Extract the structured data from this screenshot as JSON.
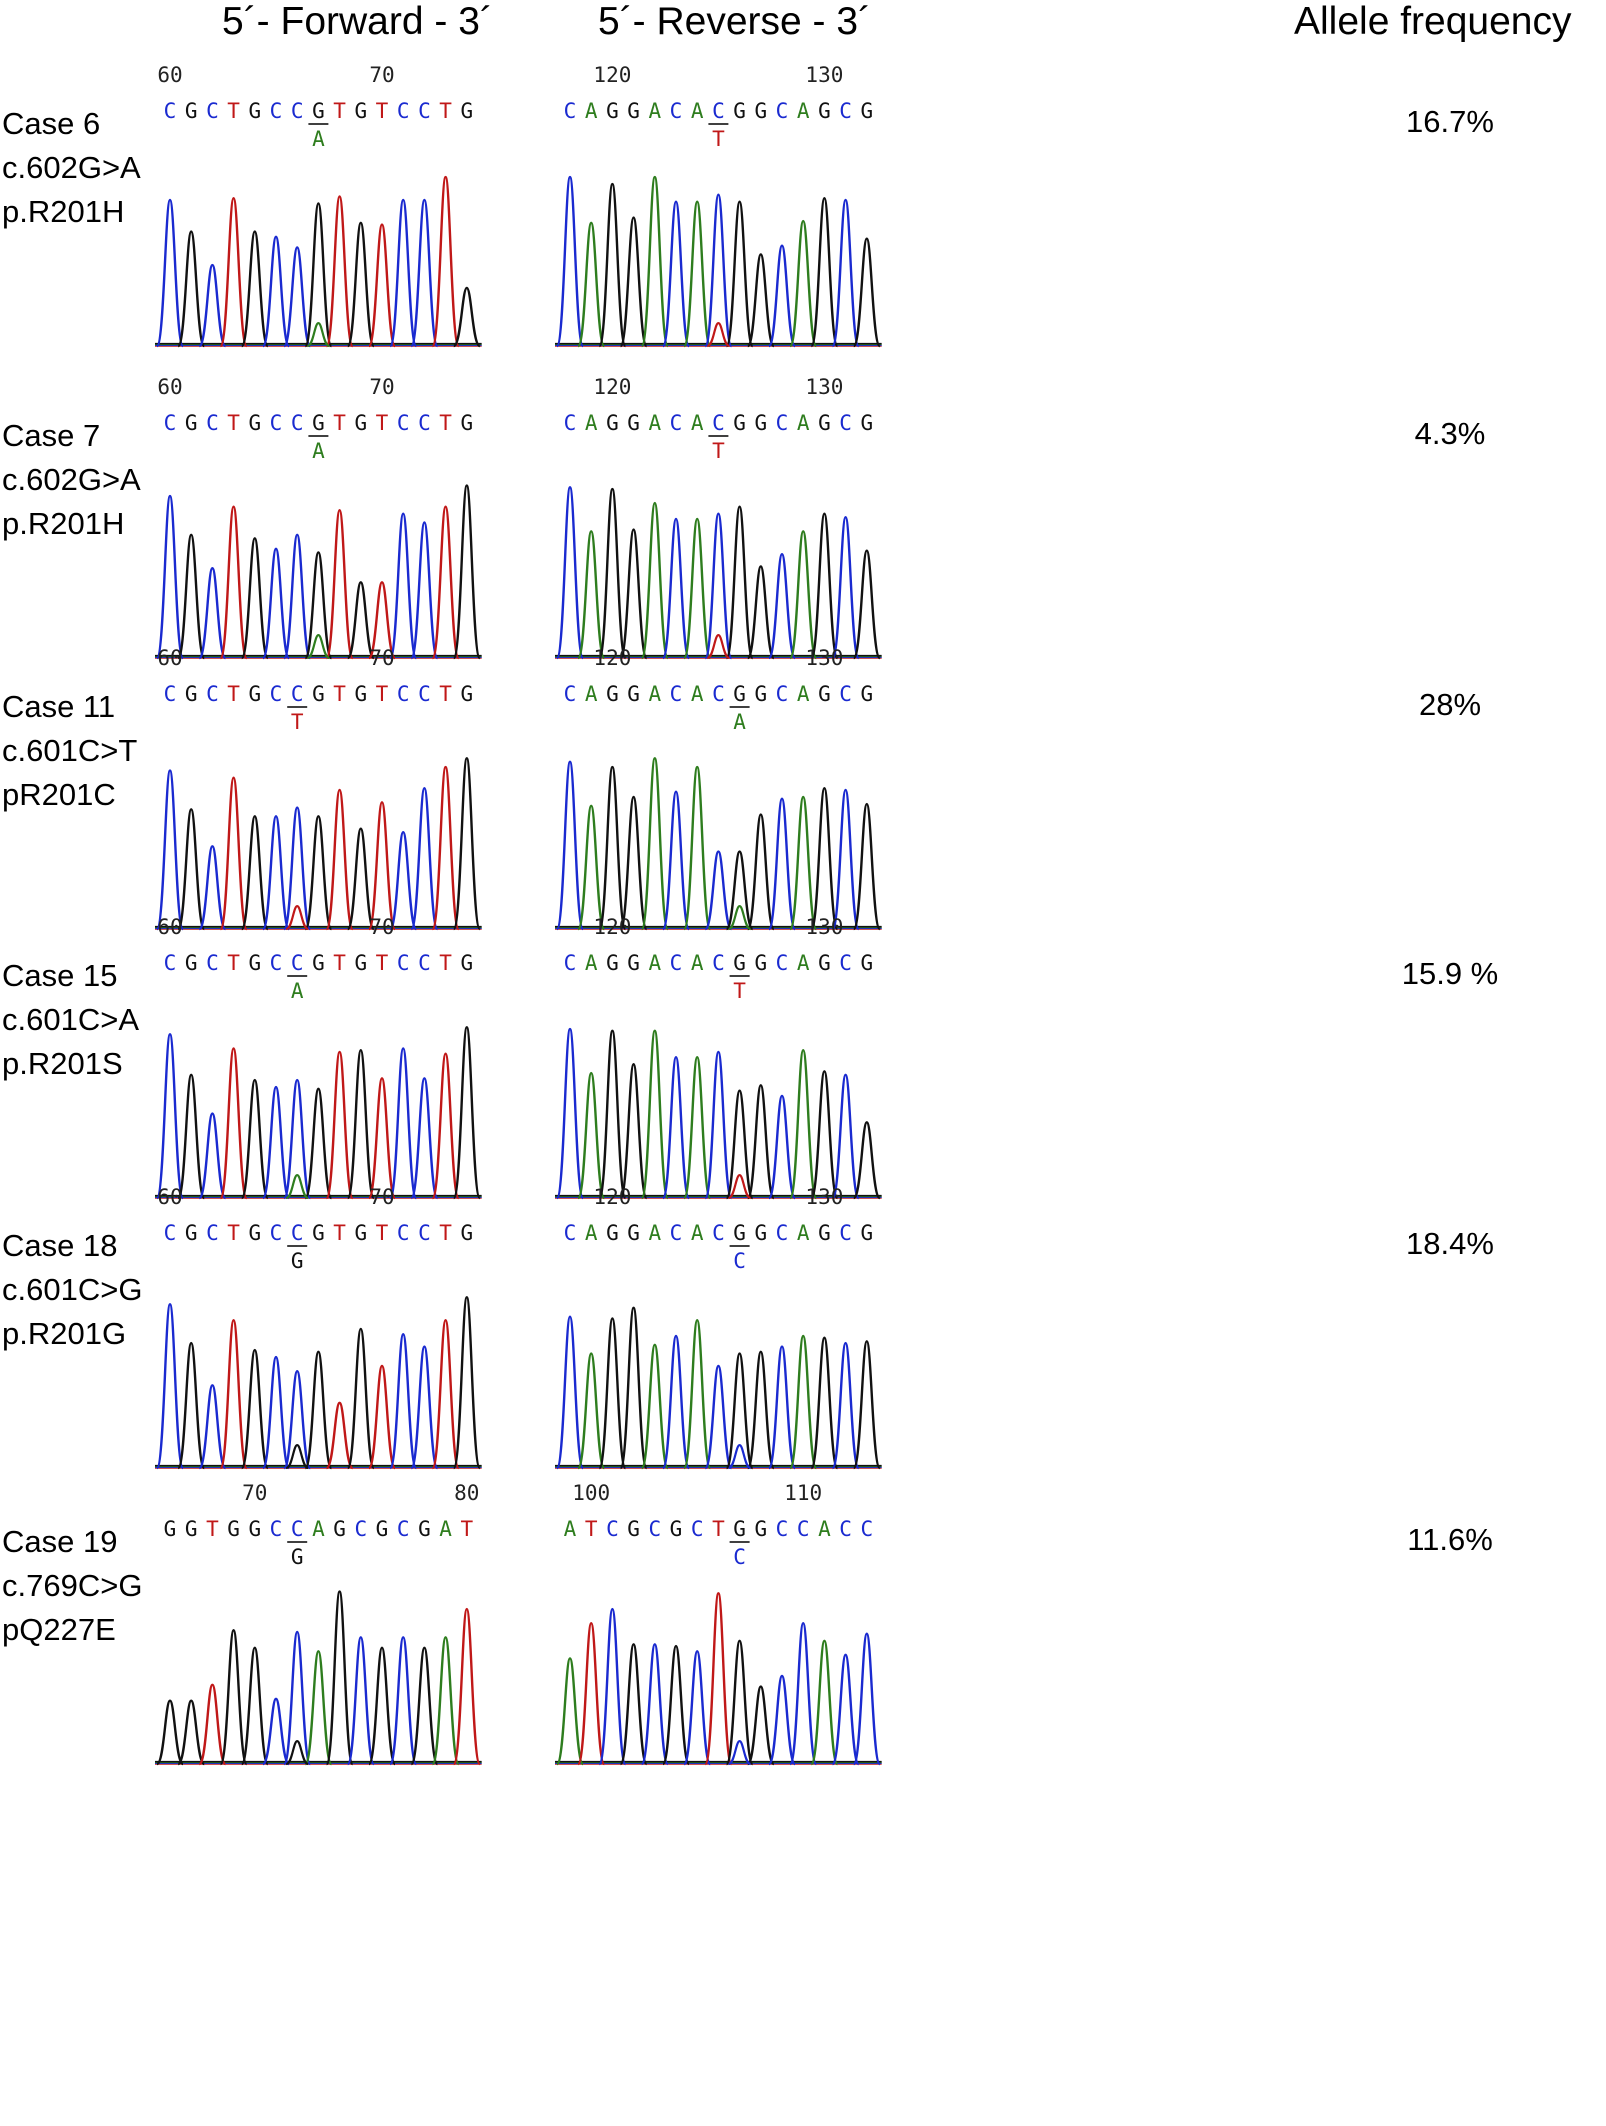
{
  "headers": {
    "forward": "5´- Forward - 3´",
    "reverse": "5´- Reverse - 3´",
    "allele_frequency": "Allele frequency"
  },
  "colors": {
    "A": "#2e7d1e",
    "C": "#1a2ad0",
    "G": "#111111",
    "T": "#c01818"
  },
  "cases": [
    {
      "label": [
        "Case 6",
        "c.602G>A",
        "p.R201H"
      ],
      "frequency": "16.7%",
      "forward": {
        "seq": "CGCTGCCGTGTCCTG",
        "numbers": [
          {
            "label": "60",
            "at": 0
          },
          {
            "label": "70",
            "at": 10
          }
        ],
        "mut_index": 7,
        "alt": "A",
        "heights": [
          0.83,
          0.65,
          0.46,
          0.84,
          0.65,
          0.62,
          0.56,
          0.81,
          0.85,
          0.7,
          0.69,
          0.83,
          0.83,
          0.96,
          0.33
        ]
      },
      "reverse": {
        "seq": "CAGGACACGGCAGCG",
        "numbers": [
          {
            "label": "120",
            "at": 2
          },
          {
            "label": "130",
            "at": 12
          }
        ],
        "mut_index": 7,
        "alt": "T",
        "heights": [
          0.96,
          0.7,
          0.92,
          0.73,
          0.96,
          0.82,
          0.82,
          0.86,
          0.82,
          0.52,
          0.57,
          0.71,
          0.84,
          0.83,
          0.61
        ]
      }
    },
    {
      "label": [
        "Case 7",
        "c.602G>A",
        "p.R201H"
      ],
      "frequency": "4.3%",
      "forward": {
        "seq": "CGCTGCCGTGTCCTG",
        "numbers": [
          {
            "label": "60",
            "at": 0
          },
          {
            "label": "70",
            "at": 10
          }
        ],
        "mut_index": 7,
        "alt": "A",
        "heights": [
          0.92,
          0.7,
          0.51,
          0.86,
          0.68,
          0.62,
          0.7,
          0.6,
          0.84,
          0.43,
          0.43,
          0.82,
          0.77,
          0.86,
          0.98
        ]
      },
      "reverse": {
        "seq": "CAGGACACGGCAGCG",
        "numbers": [
          {
            "label": "120",
            "at": 2
          },
          {
            "label": "130",
            "at": 12
          }
        ],
        "mut_index": 7,
        "alt": "T",
        "heights": [
          0.97,
          0.72,
          0.96,
          0.73,
          0.88,
          0.79,
          0.79,
          0.82,
          0.86,
          0.52,
          0.59,
          0.72,
          0.82,
          0.8,
          0.61
        ]
      }
    },
    {
      "label": [
        "Case 11",
        "c.601C>T",
        "pR201C"
      ],
      "frequency": "28%",
      "forward": {
        "seq": "CGCTGCCGTGTCCTG",
        "numbers": [
          {
            "label": "60",
            "at": 0
          },
          {
            "label": "70",
            "at": 10
          }
        ],
        "mut_index": 6,
        "alt": "T",
        "heights": [
          0.9,
          0.68,
          0.47,
          0.86,
          0.64,
          0.64,
          0.69,
          0.64,
          0.79,
          0.57,
          0.72,
          0.55,
          0.8,
          0.92,
          0.97
        ]
      },
      "reverse": {
        "seq": "CAGGACACGGCAGCG",
        "numbers": [
          {
            "label": "120",
            "at": 2
          },
          {
            "label": "130",
            "at": 12
          }
        ],
        "mut_index": 8,
        "alt": "A",
        "heights": [
          0.95,
          0.7,
          0.92,
          0.75,
          0.97,
          0.78,
          0.92,
          0.44,
          0.44,
          0.65,
          0.74,
          0.75,
          0.8,
          0.79,
          0.71
        ]
      }
    },
    {
      "label": [
        "Case 15",
        "c.601C>A",
        "p.R201S"
      ],
      "frequency": "15.9 %",
      "forward": {
        "seq": "CGCTGCCGTGTCCTG",
        "numbers": [
          {
            "label": "60",
            "at": 0
          },
          {
            "label": "70",
            "at": 10
          }
        ],
        "mut_index": 6,
        "alt": "A",
        "heights": [
          0.93,
          0.7,
          0.48,
          0.85,
          0.67,
          0.63,
          0.67,
          0.62,
          0.83,
          0.84,
          0.68,
          0.85,
          0.68,
          0.82,
          0.97
        ]
      },
      "reverse": {
        "seq": "CAGGACACGGCAGCG",
        "numbers": [
          {
            "label": "120",
            "at": 2
          },
          {
            "label": "130",
            "at": 12
          }
        ],
        "mut_index": 8,
        "alt": "T",
        "heights": [
          0.96,
          0.71,
          0.95,
          0.76,
          0.95,
          0.8,
          0.8,
          0.83,
          0.61,
          0.64,
          0.58,
          0.84,
          0.72,
          0.7,
          0.43
        ]
      }
    },
    {
      "label": [
        "Case 18",
        "c.601C>G",
        "p.R201G"
      ],
      "frequency": "18.4%",
      "forward": {
        "seq": "CGCTGCCGTGTCCTG",
        "numbers": [
          {
            "label": "60",
            "at": 0
          },
          {
            "label": "70",
            "at": 10
          }
        ],
        "mut_index": 6,
        "alt": "G",
        "heights": [
          0.93,
          0.71,
          0.47,
          0.84,
          0.67,
          0.63,
          0.55,
          0.66,
          0.37,
          0.79,
          0.58,
          0.76,
          0.69,
          0.84,
          0.97
        ]
      },
      "reverse": {
        "seq": "CAGGACACGGCAGCG",
        "numbers": [
          {
            "label": "120",
            "at": 2
          },
          {
            "label": "130",
            "at": 12
          }
        ],
        "mut_index": 8,
        "alt": "C",
        "heights": [
          0.86,
          0.65,
          0.85,
          0.91,
          0.7,
          0.75,
          0.84,
          0.58,
          0.65,
          0.66,
          0.69,
          0.75,
          0.74,
          0.71,
          0.72
        ]
      }
    },
    {
      "label": [
        "Case 19",
        "c.769C>G",
        "pQ227E"
      ],
      "frequency": "11.6%",
      "forward": {
        "seq": "GGTGGCCAGCGCGAT",
        "numbers": [
          {
            "label": "70",
            "at": 4
          },
          {
            "label": "80",
            "at": 14
          }
        ],
        "mut_index": 6,
        "alt": "G",
        "heights": [
          0.36,
          0.36,
          0.45,
          0.76,
          0.66,
          0.37,
          0.75,
          0.64,
          0.98,
          0.72,
          0.66,
          0.72,
          0.66,
          0.72,
          0.88
        ]
      },
      "reverse": {
        "seq": "ATCGCGCTGGCCACC",
        "numbers": [
          {
            "label": "100",
            "at": 1
          },
          {
            "label": "110",
            "at": 11
          }
        ],
        "mut_index": 8,
        "alt": "C",
        "heights": [
          0.6,
          0.8,
          0.88,
          0.68,
          0.68,
          0.67,
          0.64,
          0.97,
          0.7,
          0.44,
          0.5,
          0.8,
          0.7,
          0.62,
          0.74
        ]
      }
    }
  ]
}
